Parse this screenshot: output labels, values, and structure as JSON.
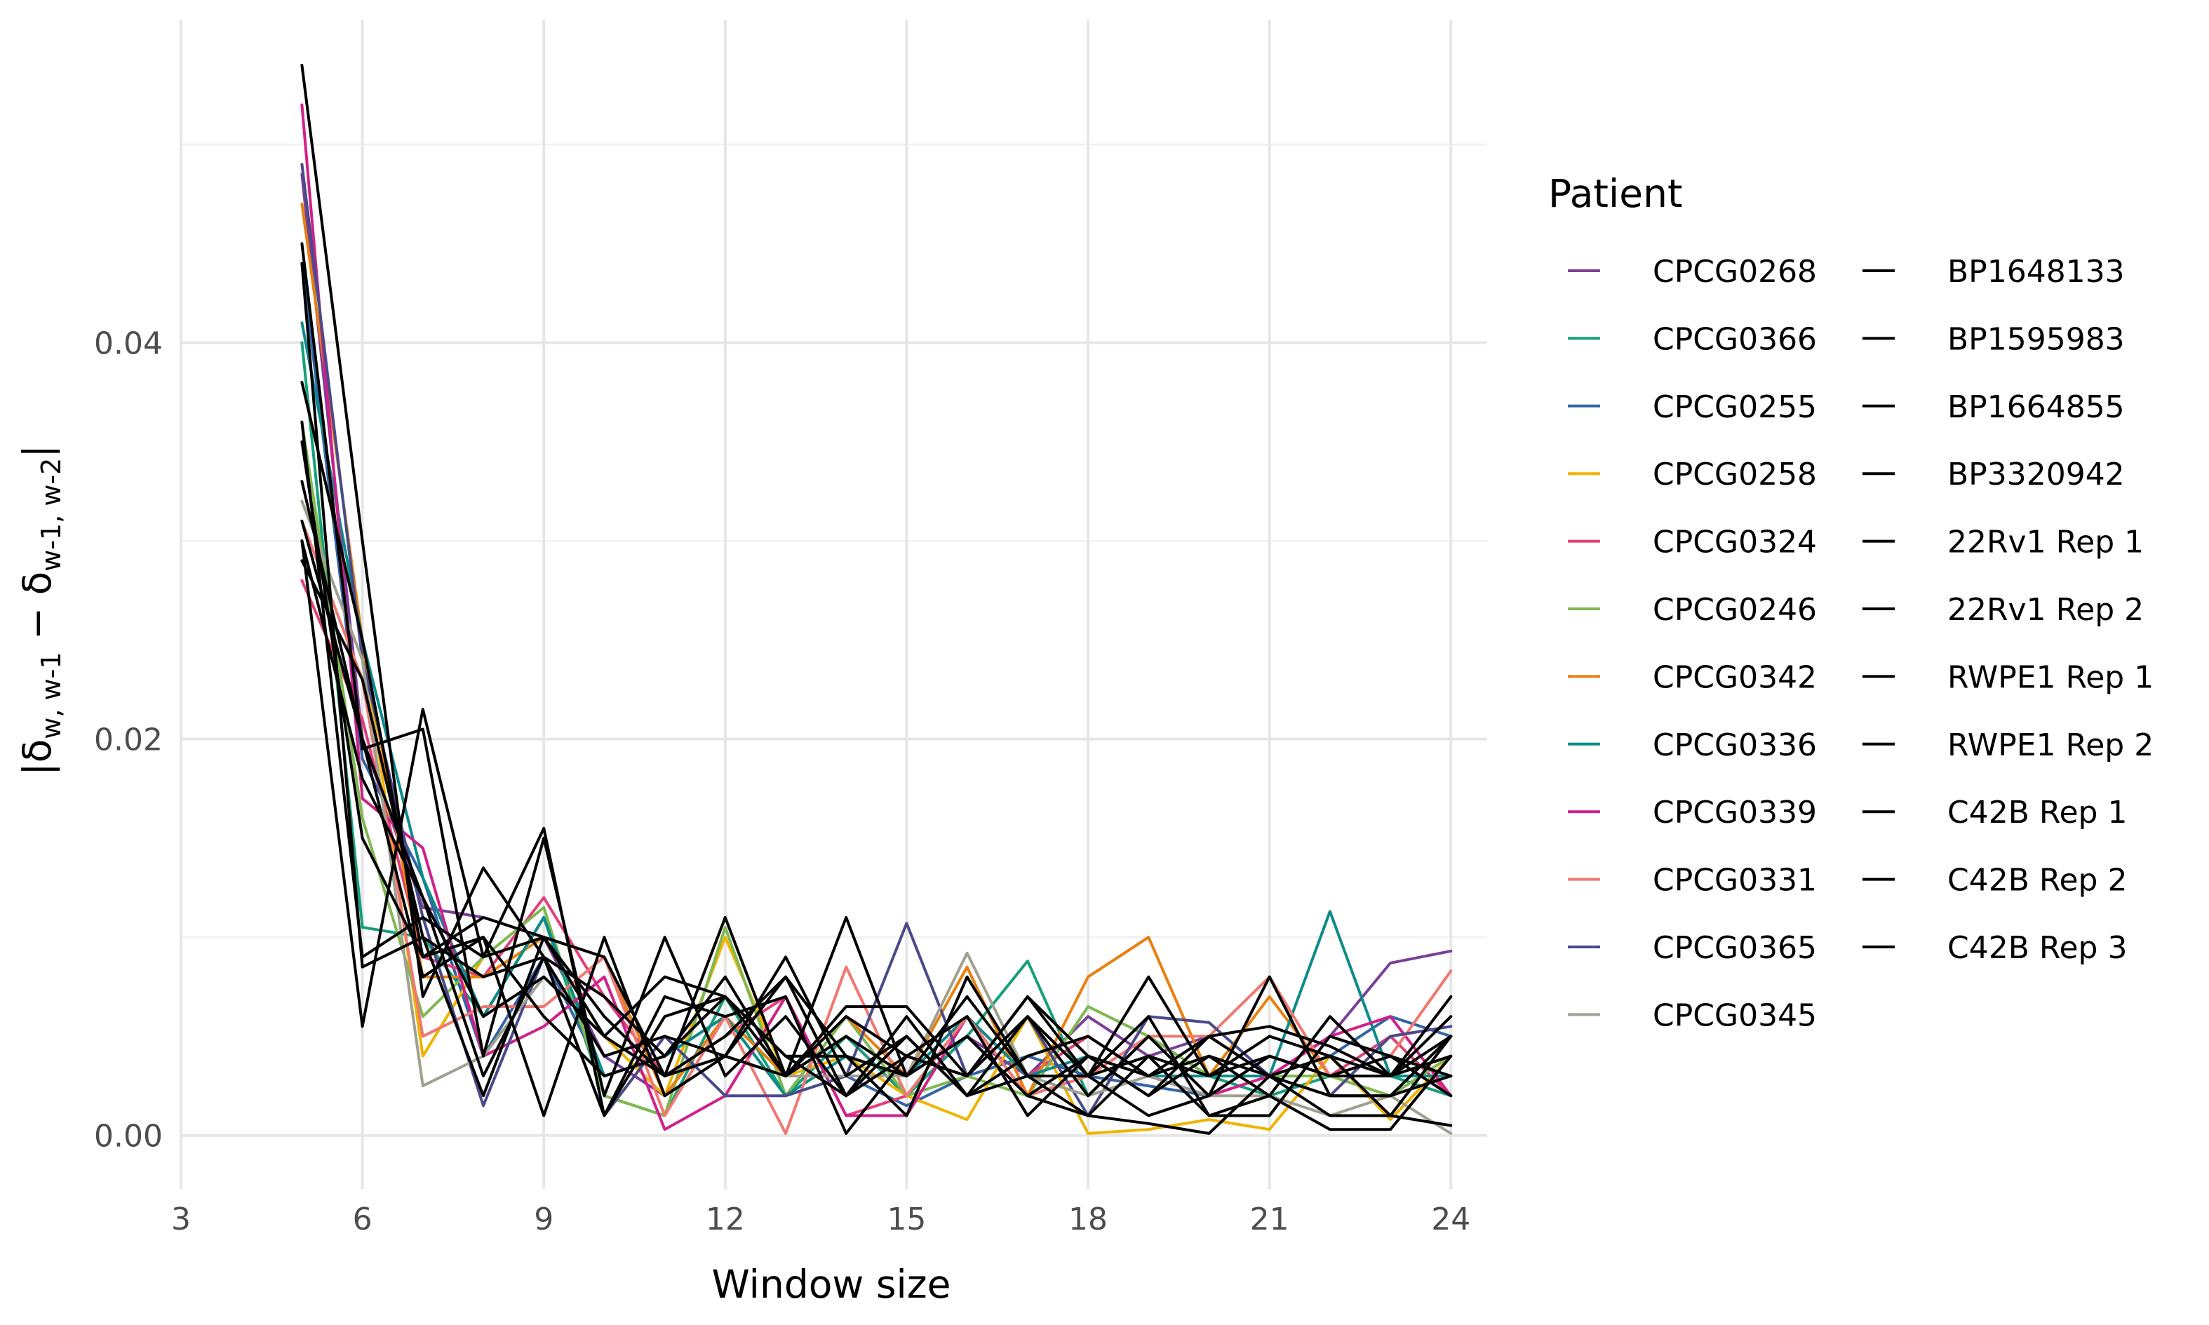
{
  "chart_data": {
    "type": "line",
    "xlabel": "Window size",
    "ylabel_parts": {
      "delta1": "δ",
      "sub1": "w, w-1",
      "minus": " − ",
      "delta2": "δ",
      "sub2": "w-1, w-2"
    },
    "x_ticks": [
      3,
      6,
      9,
      12,
      15,
      18,
      21,
      24
    ],
    "y_ticks": [
      0.0,
      0.02,
      0.04
    ],
    "y_tick_labels": [
      "0.00",
      "0.02",
      "0.04"
    ],
    "xlim": [
      3,
      24.6
    ],
    "ylim": [
      -0.0027,
      0.0563
    ],
    "legend": {
      "title": "Patient",
      "placement": "right",
      "columns": 2
    },
    "x": [
      5,
      6,
      7,
      8,
      9,
      10,
      11,
      12,
      13,
      14,
      15,
      16,
      17,
      18,
      19,
      20,
      21,
      22,
      23,
      24
    ],
    "series": [
      {
        "name": "CPCG0268",
        "color": "#7B3F98",
        "values": [
          0.0485,
          0.02,
          0.0115,
          0.011,
          0.01,
          0.004,
          0.002,
          0.006,
          0.003,
          0.005,
          0.002,
          0.005,
          0.003,
          0.006,
          0.004,
          0.005,
          0.003,
          0.005,
          0.0087,
          0.0093
        ]
      },
      {
        "name": "CPCG0366",
        "color": "#15A07A",
        "values": [
          0.04,
          0.0105,
          0.01,
          0.006,
          0.011,
          0.002,
          0.001,
          0.007,
          0.002,
          0.005,
          0.002,
          0.005,
          0.0088,
          0.002,
          0.005,
          0.003,
          0.002,
          0.003,
          0.003,
          0.002
        ]
      },
      {
        "name": "CPCG0255",
        "color": "#3465A4",
        "values": [
          0.044,
          0.019,
          0.013,
          0.004,
          0.009,
          0.003,
          0.004,
          0.006,
          0.002,
          0.003,
          0.0015,
          0.003,
          0.004,
          0.003,
          0.0025,
          0.002,
          0.003,
          0.004,
          0.006,
          0.005
        ]
      },
      {
        "name": "CPCG0258",
        "color": "#F0B400",
        "values": [
          0.038,
          0.025,
          0.004,
          0.009,
          0.01,
          0.005,
          0.002,
          0.01,
          0.003,
          0.004,
          0.002,
          0.0008,
          0.006,
          0.0001,
          0.0003,
          0.0008,
          0.0003,
          0.004,
          0.0008,
          0.004
        ]
      },
      {
        "name": "CPCG0324",
        "color": "#E0407A",
        "values": [
          0.028,
          0.021,
          0.009,
          0.008,
          0.012,
          0.007,
          0.003,
          0.005,
          0.007,
          0.001,
          0.002,
          0.006,
          0.003,
          0.005,
          0.003,
          0.002,
          0.004,
          0.003,
          0.005,
          0.002
        ]
      },
      {
        "name": "CPCG0246",
        "color": "#7FB850",
        "values": [
          0.036,
          0.016,
          0.006,
          0.009,
          0.0115,
          0.002,
          0.001,
          0.0105,
          0.002,
          0.006,
          0.002,
          0.003,
          0.002,
          0.0065,
          0.005,
          0.003,
          0.003,
          0.003,
          0.002,
          0.004
        ]
      },
      {
        "name": "CPCG0342",
        "color": "#E8800F",
        "values": [
          0.047,
          0.025,
          0.008,
          0.008,
          0.01,
          0.009,
          0.002,
          0.006,
          0.003,
          0.006,
          0.003,
          0.0085,
          0.002,
          0.008,
          0.01,
          0.003,
          0.007,
          0.003,
          0.003,
          0.004
        ]
      },
      {
        "name": "CPCG0336",
        "color": "#0E8A8A",
        "values": [
          0.041,
          0.025,
          0.013,
          0.006,
          0.011,
          0.003,
          0.004,
          0.006,
          0.002,
          0.004,
          0.003,
          0.006,
          0.003,
          0.004,
          0.003,
          0.003,
          0.003,
          0.0113,
          0.003,
          0.003
        ]
      },
      {
        "name": "CPCG0339",
        "color": "#D0208A",
        "values": [
          0.052,
          0.017,
          0.0145,
          0.004,
          0.0055,
          0.008,
          0.0003,
          0.002,
          0.007,
          0.001,
          0.001,
          0.006,
          0.001,
          0.004,
          0.003,
          0.002,
          0.003,
          0.005,
          0.006,
          0.002
        ]
      },
      {
        "name": "CPCG0331",
        "color": "#F07870",
        "values": [
          0.031,
          0.023,
          0.005,
          0.0065,
          0.0065,
          0.009,
          0.001,
          0.006,
          0.0001,
          0.0085,
          0.002,
          0.006,
          0.002,
          0.003,
          0.005,
          0.005,
          0.008,
          0.003,
          0.004,
          0.0083
        ]
      },
      {
        "name": "CPCG0365",
        "color": "#4A4A8A",
        "values": [
          0.049,
          0.024,
          0.011,
          0.0015,
          0.009,
          0.001,
          0.005,
          0.002,
          0.002,
          0.003,
          0.0107,
          0.003,
          0.006,
          0.001,
          0.006,
          0.0057,
          0.003,
          0.002,
          0.005,
          0.0055
        ]
      },
      {
        "name": "CPCG0345",
        "color": "#A0A090",
        "values": [
          0.032,
          0.024,
          0.0025,
          0.004,
          0.008,
          0.005,
          0.003,
          0.004,
          0.003,
          0.003,
          0.003,
          0.0092,
          0.003,
          0.002,
          0.003,
          0.002,
          0.002,
          0.001,
          0.002,
          0.0001
        ]
      },
      {
        "name": "BP1648133",
        "color": "#000000",
        "values": [
          0.054,
          0.03,
          0.007,
          0.0135,
          0.009,
          0.001,
          0.007,
          0.006,
          0.007,
          0.0001,
          0.004,
          0.006,
          0.001,
          0.004,
          0.002,
          0.004,
          0.002,
          0.006,
          0.003,
          0.004
        ]
      },
      {
        "name": "BP1595983",
        "color": "#000000",
        "values": [
          0.044,
          0.0085,
          0.01,
          0.002,
          0.01,
          0.009,
          0.003,
          0.011,
          0.003,
          0.011,
          0.003,
          0.007,
          0.003,
          0.003,
          0.001,
          0.002,
          0.008,
          0.002,
          0.002,
          0.005
        ]
      },
      {
        "name": "BP1664855",
        "color": "#000000",
        "values": [
          0.045,
          0.0195,
          0.0205,
          0.004,
          0.015,
          0.002,
          0.01,
          0.003,
          0.006,
          0.002,
          0.005,
          0.002,
          0.006,
          0.003,
          0.004,
          0.003,
          0.004,
          0.003,
          0.004,
          0.003
        ]
      },
      {
        "name": "BP3320942",
        "color": "#000000",
        "values": [
          0.038,
          0.025,
          0.009,
          0.01,
          0.001,
          0.01,
          0.002,
          0.004,
          0.008,
          0.002,
          0.004,
          0.003,
          0.007,
          0.004,
          0.002,
          0.005,
          0.003,
          0.004,
          0.001,
          0.005
        ]
      },
      {
        "name": "22Rv1 Rep 1",
        "color": "#000000",
        "values": [
          0.036,
          0.009,
          0.011,
          0.009,
          0.01,
          0.005,
          0.008,
          0.007,
          0.003,
          0.006,
          0.004,
          0.003,
          0.006,
          0.002,
          0.005,
          0.002,
          0.004,
          0.003,
          0.003,
          0.006
        ]
      },
      {
        "name": "22Rv1 Rep 2",
        "color": "#000000",
        "values": [
          0.03,
          0.0055,
          0.0215,
          0.009,
          0.0155,
          0.001,
          0.006,
          0.007,
          0.004,
          0.002,
          0.006,
          0.002,
          0.004,
          0.005,
          0.003,
          0.004,
          0.003,
          0.002,
          0.002,
          0.003
        ]
      },
      {
        "name": "RWPE1 Rep 1",
        "color": "#000000",
        "values": [
          0.031,
          0.02,
          0.012,
          0.003,
          0.009,
          0.007,
          0.004,
          0.008,
          0.003,
          0.0065,
          0.0065,
          0.003,
          0.007,
          0.003,
          0.008,
          0.003,
          0.005,
          0.004,
          0.003,
          0.007
        ]
      },
      {
        "name": "RWPE1 Rep 2",
        "color": "#000000",
        "values": [
          0.035,
          0.015,
          0.009,
          0.011,
          0.01,
          0.006,
          0.003,
          0.005,
          0.008,
          0.004,
          0.003,
          0.005,
          0.002,
          0.004,
          0.003,
          0.005,
          0.0055,
          0.0045,
          0.003,
          0.005
        ]
      },
      {
        "name": "C42B Rep 1",
        "color": "#000000",
        "values": [
          0.029,
          0.023,
          0.01,
          0.008,
          0.009,
          0.004,
          0.005,
          0.004,
          0.009,
          0.003,
          0.005,
          0.002,
          0.003,
          0.003,
          0.006,
          0.001,
          0.001,
          0.005,
          0.004,
          0.002
        ]
      },
      {
        "name": "C42B Rep 2",
        "color": "#000000",
        "values": [
          0.033,
          0.02,
          0.008,
          0.01,
          0.006,
          0.003,
          0.004,
          0.007,
          0.004,
          0.004,
          0.001,
          0.008,
          0.003,
          0.001,
          0.004,
          0.001,
          0.002,
          0.0003,
          0.0003,
          0.004
        ]
      },
      {
        "name": "C42B Rep 3",
        "color": "#000000",
        "values": [
          0.03,
          0.018,
          0.012,
          0.006,
          0.008,
          0.005,
          0.003,
          0.004,
          0.003,
          0.005,
          0.003,
          0.005,
          0.002,
          0.001,
          0.0006,
          0.0001,
          0.003,
          0.001,
          0.001,
          0.0005
        ]
      }
    ]
  }
}
